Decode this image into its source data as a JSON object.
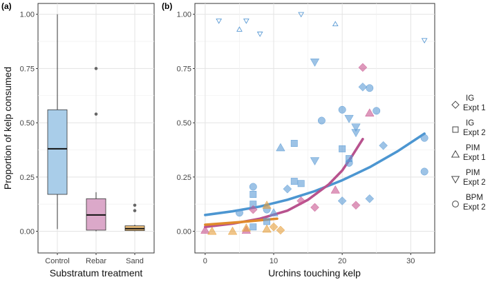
{
  "chart_data": [
    {
      "type": "box",
      "panel_label": "(a)",
      "xlabel": "Substratum treatment",
      "ylabel": "Proportion of kelp consumed",
      "ylim": [
        -0.1,
        1.05
      ],
      "yticks": [
        "0.00",
        "0.25",
        "0.50",
        "0.75",
        "1.00"
      ],
      "grid": true,
      "categories": [
        "Control",
        "Rebar",
        "Sand"
      ],
      "colors": [
        "#a9cde9",
        "#dba8c9",
        "#ecbf7b"
      ],
      "boxes": [
        {
          "category": "Control",
          "q1": 0.17,
          "median": 0.38,
          "q3": 0.56,
          "whisker_low": 0.01,
          "whisker_high": 1.0,
          "outliers": []
        },
        {
          "category": "Rebar",
          "q1": 0.005,
          "median": 0.075,
          "q3": 0.15,
          "whisker_low": 0.0,
          "whisker_high": 0.18,
          "outliers": [
            0.54,
            0.75
          ]
        },
        {
          "category": "Sand",
          "q1": 0.003,
          "median": 0.012,
          "q3": 0.025,
          "whisker_low": 0.0,
          "whisker_high": 0.03,
          "outliers": [
            0.095,
            0.12
          ]
        }
      ]
    },
    {
      "type": "scatter",
      "panel_label": "(b)",
      "xlabel": "Urchins touching kelp",
      "ylabel": "",
      "xlim": [
        -1.5,
        33.5
      ],
      "ylim": [
        -0.1,
        1.05
      ],
      "xticks": [
        "0",
        "10",
        "20",
        "30"
      ],
      "yticks": [
        "0.00",
        "0.25",
        "0.50",
        "0.75",
        "1.00"
      ],
      "grid": true,
      "colors": {
        "control": "#5b9bd5",
        "rebar": "#c8558f",
        "sand": "#e69f3a",
        "control_fit": "#4c96d1",
        "rebar_fit": "#b8528e",
        "sand_fit": "#e08a2c"
      },
      "points": [
        {
          "x": 2,
          "y": 0.97,
          "shape": "tri-down",
          "group": "control",
          "size": "small",
          "hollow": true
        },
        {
          "x": 5,
          "y": 0.93,
          "shape": "tri-up",
          "group": "control",
          "size": "small",
          "hollow": true
        },
        {
          "x": 6,
          "y": 0.97,
          "shape": "tri-down",
          "group": "control",
          "size": "small",
          "hollow": true
        },
        {
          "x": 8,
          "y": 0.91,
          "shape": "tri-down",
          "group": "control",
          "size": "small",
          "hollow": true
        },
        {
          "x": 14,
          "y": 1.0,
          "shape": "tri-down",
          "group": "control",
          "size": "small",
          "hollow": true
        },
        {
          "x": 19,
          "y": 0.955,
          "shape": "tri-up",
          "group": "control",
          "size": "small",
          "hollow": true
        },
        {
          "x": 32,
          "y": 0.88,
          "shape": "tri-down",
          "group": "control",
          "size": "small",
          "hollow": true
        },
        {
          "x": 16,
          "y": 0.78,
          "shape": "tri-down",
          "group": "control",
          "size": "large"
        },
        {
          "x": 23,
          "y": 0.665,
          "shape": "diamond",
          "group": "control",
          "size": "large"
        },
        {
          "x": 24,
          "y": 0.66,
          "shape": "circle",
          "group": "control",
          "size": "large"
        },
        {
          "x": 25,
          "y": 0.555,
          "shape": "circle",
          "group": "control",
          "size": "large"
        },
        {
          "x": 20,
          "y": 0.56,
          "shape": "circle",
          "group": "control",
          "size": "large"
        },
        {
          "x": 21,
          "y": 0.52,
          "shape": "tri-down",
          "group": "control",
          "size": "large"
        },
        {
          "x": 17,
          "y": 0.51,
          "shape": "circle",
          "group": "control",
          "size": "large"
        },
        {
          "x": 22,
          "y": 0.48,
          "shape": "tri-down",
          "group": "control",
          "size": "large"
        },
        {
          "x": 22,
          "y": 0.455,
          "shape": "tri-down",
          "group": "control",
          "size": "large"
        },
        {
          "x": 32,
          "y": 0.43,
          "shape": "circle",
          "group": "control",
          "size": "large"
        },
        {
          "x": 13,
          "y": 0.405,
          "shape": "square",
          "group": "control",
          "size": "large"
        },
        {
          "x": 11,
          "y": 0.385,
          "shape": "tri-up",
          "group": "control",
          "size": "large"
        },
        {
          "x": 20,
          "y": 0.38,
          "shape": "square",
          "group": "control",
          "size": "large"
        },
        {
          "x": 26,
          "y": 0.395,
          "shape": "diamond",
          "group": "control",
          "size": "large"
        },
        {
          "x": 21,
          "y": 0.335,
          "shape": "square",
          "group": "control",
          "size": "large"
        },
        {
          "x": 21,
          "y": 0.315,
          "shape": "circle",
          "group": "control",
          "size": "large"
        },
        {
          "x": 16,
          "y": 0.325,
          "shape": "tri-down",
          "group": "control",
          "size": "large"
        },
        {
          "x": 32,
          "y": 0.275,
          "shape": "circle",
          "group": "control",
          "size": "large"
        },
        {
          "x": 13,
          "y": 0.23,
          "shape": "square",
          "group": "control",
          "size": "large"
        },
        {
          "x": 14,
          "y": 0.22,
          "shape": "square",
          "group": "control",
          "size": "large"
        },
        {
          "x": 12,
          "y": 0.195,
          "shape": "diamond",
          "group": "control",
          "size": "large"
        },
        {
          "x": 7,
          "y": 0.205,
          "shape": "circle",
          "group": "control",
          "size": "large"
        },
        {
          "x": 7,
          "y": 0.17,
          "shape": "square",
          "group": "control",
          "size": "large"
        },
        {
          "x": 7,
          "y": 0.125,
          "shape": "square",
          "group": "control",
          "size": "large"
        },
        {
          "x": 5,
          "y": 0.085,
          "shape": "circle",
          "group": "control",
          "size": "large"
        },
        {
          "x": 9,
          "y": 0.1,
          "shape": "circle",
          "group": "control",
          "size": "large"
        },
        {
          "x": 9,
          "y": 0.045,
          "shape": "square",
          "group": "control",
          "size": "large"
        },
        {
          "x": 7,
          "y": 0.02,
          "shape": "square",
          "group": "control",
          "size": "large"
        },
        {
          "x": 10,
          "y": 0.085,
          "shape": "tri-up",
          "group": "control",
          "size": "large"
        },
        {
          "x": 20,
          "y": 0.14,
          "shape": "diamond",
          "group": "control",
          "size": "large"
        },
        {
          "x": 24,
          "y": 0.15,
          "shape": "diamond",
          "group": "control",
          "size": "large"
        },
        {
          "x": 23,
          "y": 0.755,
          "shape": "diamond",
          "group": "rebar",
          "size": "large"
        },
        {
          "x": 24,
          "y": 0.545,
          "shape": "tri-up",
          "group": "rebar",
          "size": "large"
        },
        {
          "x": 19,
          "y": 0.19,
          "shape": "tri-up",
          "group": "rebar",
          "size": "large"
        },
        {
          "x": 14,
          "y": 0.14,
          "shape": "diamond",
          "group": "rebar",
          "size": "large"
        },
        {
          "x": 16,
          "y": 0.11,
          "shape": "diamond",
          "group": "rebar",
          "size": "large"
        },
        {
          "x": 22,
          "y": 0.12,
          "shape": "diamond",
          "group": "rebar",
          "size": "large"
        },
        {
          "x": 7,
          "y": 0.1,
          "shape": "diamond",
          "group": "rebar",
          "size": "large"
        },
        {
          "x": 6,
          "y": 0.005,
          "shape": "tri-up",
          "group": "rebar",
          "size": "large"
        },
        {
          "x": 0,
          "y": 0.005,
          "shape": "tri-up",
          "group": "rebar",
          "size": "large"
        },
        {
          "x": 9,
          "y": 0.12,
          "shape": "tri-up",
          "group": "sand",
          "size": "large"
        },
        {
          "x": 1,
          "y": 0.0,
          "shape": "tri-up",
          "group": "sand",
          "size": "large"
        },
        {
          "x": 4,
          "y": 0.0,
          "shape": "tri-up",
          "group": "sand",
          "size": "large"
        },
        {
          "x": 6,
          "y": 0.015,
          "shape": "tri-up",
          "group": "sand",
          "size": "large"
        },
        {
          "x": 9,
          "y": 0.01,
          "shape": "tri-up",
          "group": "sand",
          "size": "large"
        },
        {
          "x": 10,
          "y": 0.02,
          "shape": "diamond",
          "group": "sand",
          "size": "large"
        },
        {
          "x": 11,
          "y": 0.005,
          "shape": "diamond",
          "group": "sand",
          "size": "large"
        }
      ],
      "fits": [
        {
          "group": "control",
          "x": [
            0,
            4,
            8,
            12,
            16,
            20,
            24,
            28,
            32
          ],
          "y": [
            0.075,
            0.092,
            0.114,
            0.145,
            0.185,
            0.235,
            0.295,
            0.367,
            0.45
          ]
        },
        {
          "group": "rebar",
          "x": [
            0,
            4,
            8,
            12,
            15,
            18,
            20,
            21.5,
            23
          ],
          "y": [
            0.02,
            0.035,
            0.058,
            0.095,
            0.145,
            0.215,
            0.28,
            0.35,
            0.425
          ]
        },
        {
          "group": "sand",
          "x": [
            0,
            5,
            10.5
          ],
          "y": [
            0.03,
            0.042,
            0.058
          ]
        }
      ],
      "legend": {
        "placement": "right",
        "entries": [
          {
            "line1": "IG",
            "line2": "Expt 1",
            "shape": "diamond"
          },
          {
            "line1": "IG",
            "line2": "Expt 2",
            "shape": "square"
          },
          {
            "line1": "PIM",
            "line2": "Expt 1",
            "shape": "tri-up"
          },
          {
            "line1": "PIM",
            "line2": "Expt 2",
            "shape": "tri-down"
          },
          {
            "line1": "BPM",
            "line2": "Expt 2",
            "shape": "circle"
          }
        ]
      }
    }
  ]
}
